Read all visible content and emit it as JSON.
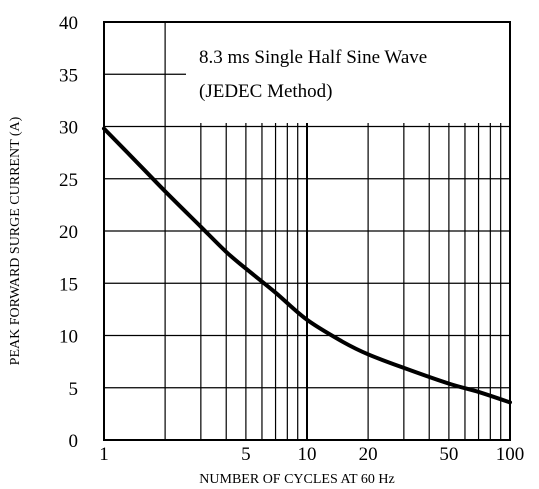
{
  "chart_data": {
    "type": "line",
    "title": "",
    "xlabel": "NUMBER OF CYCLES AT 60 Hz",
    "ylabel": "PEAK FORWARD SURGE CURRENT (A)",
    "x_scale": "log",
    "xlim": [
      1,
      100
    ],
    "ylim": [
      0,
      40
    ],
    "x_tick_labels": [
      {
        "value": 1,
        "label": "1"
      },
      {
        "value": 5,
        "label": "5"
      },
      {
        "value": 10,
        "label": "10"
      },
      {
        "value": 20,
        "label": "20"
      },
      {
        "value": 50,
        "label": "50"
      },
      {
        "value": 100,
        "label": "100"
      }
    ],
    "y_tick_labels": [
      {
        "value": 0,
        "label": "0"
      },
      {
        "value": 5,
        "label": "5"
      },
      {
        "value": 10,
        "label": "10"
      },
      {
        "value": 15,
        "label": "15"
      },
      {
        "value": 20,
        "label": "20"
      },
      {
        "value": 25,
        "label": "25"
      },
      {
        "value": 30,
        "label": "30"
      },
      {
        "value": 35,
        "label": "35"
      },
      {
        "value": 40,
        "label": "40"
      }
    ],
    "x_minor_gridlines": [
      2,
      3,
      4,
      5,
      6,
      7,
      8,
      9,
      20,
      30,
      40,
      50,
      60,
      70,
      80,
      90
    ],
    "grid": true,
    "annotation": {
      "lines": [
        "8.3 ms Single Half Sine Wave",
        "(JEDEC Method)"
      ],
      "placement": "top-right"
    },
    "series": [
      {
        "x": [
          1,
          1.5,
          2,
          3,
          4,
          5,
          7,
          10,
          15,
          20,
          30,
          50,
          70,
          100
        ],
        "y": [
          29.8,
          26.3,
          23.8,
          20.4,
          18.0,
          16.4,
          14.1,
          11.5,
          9.4,
          8.2,
          6.9,
          5.4,
          4.6,
          3.6
        ]
      }
    ],
    "colors": {
      "line": "#000000",
      "grid": "#000000",
      "background": "#ffffff"
    }
  }
}
